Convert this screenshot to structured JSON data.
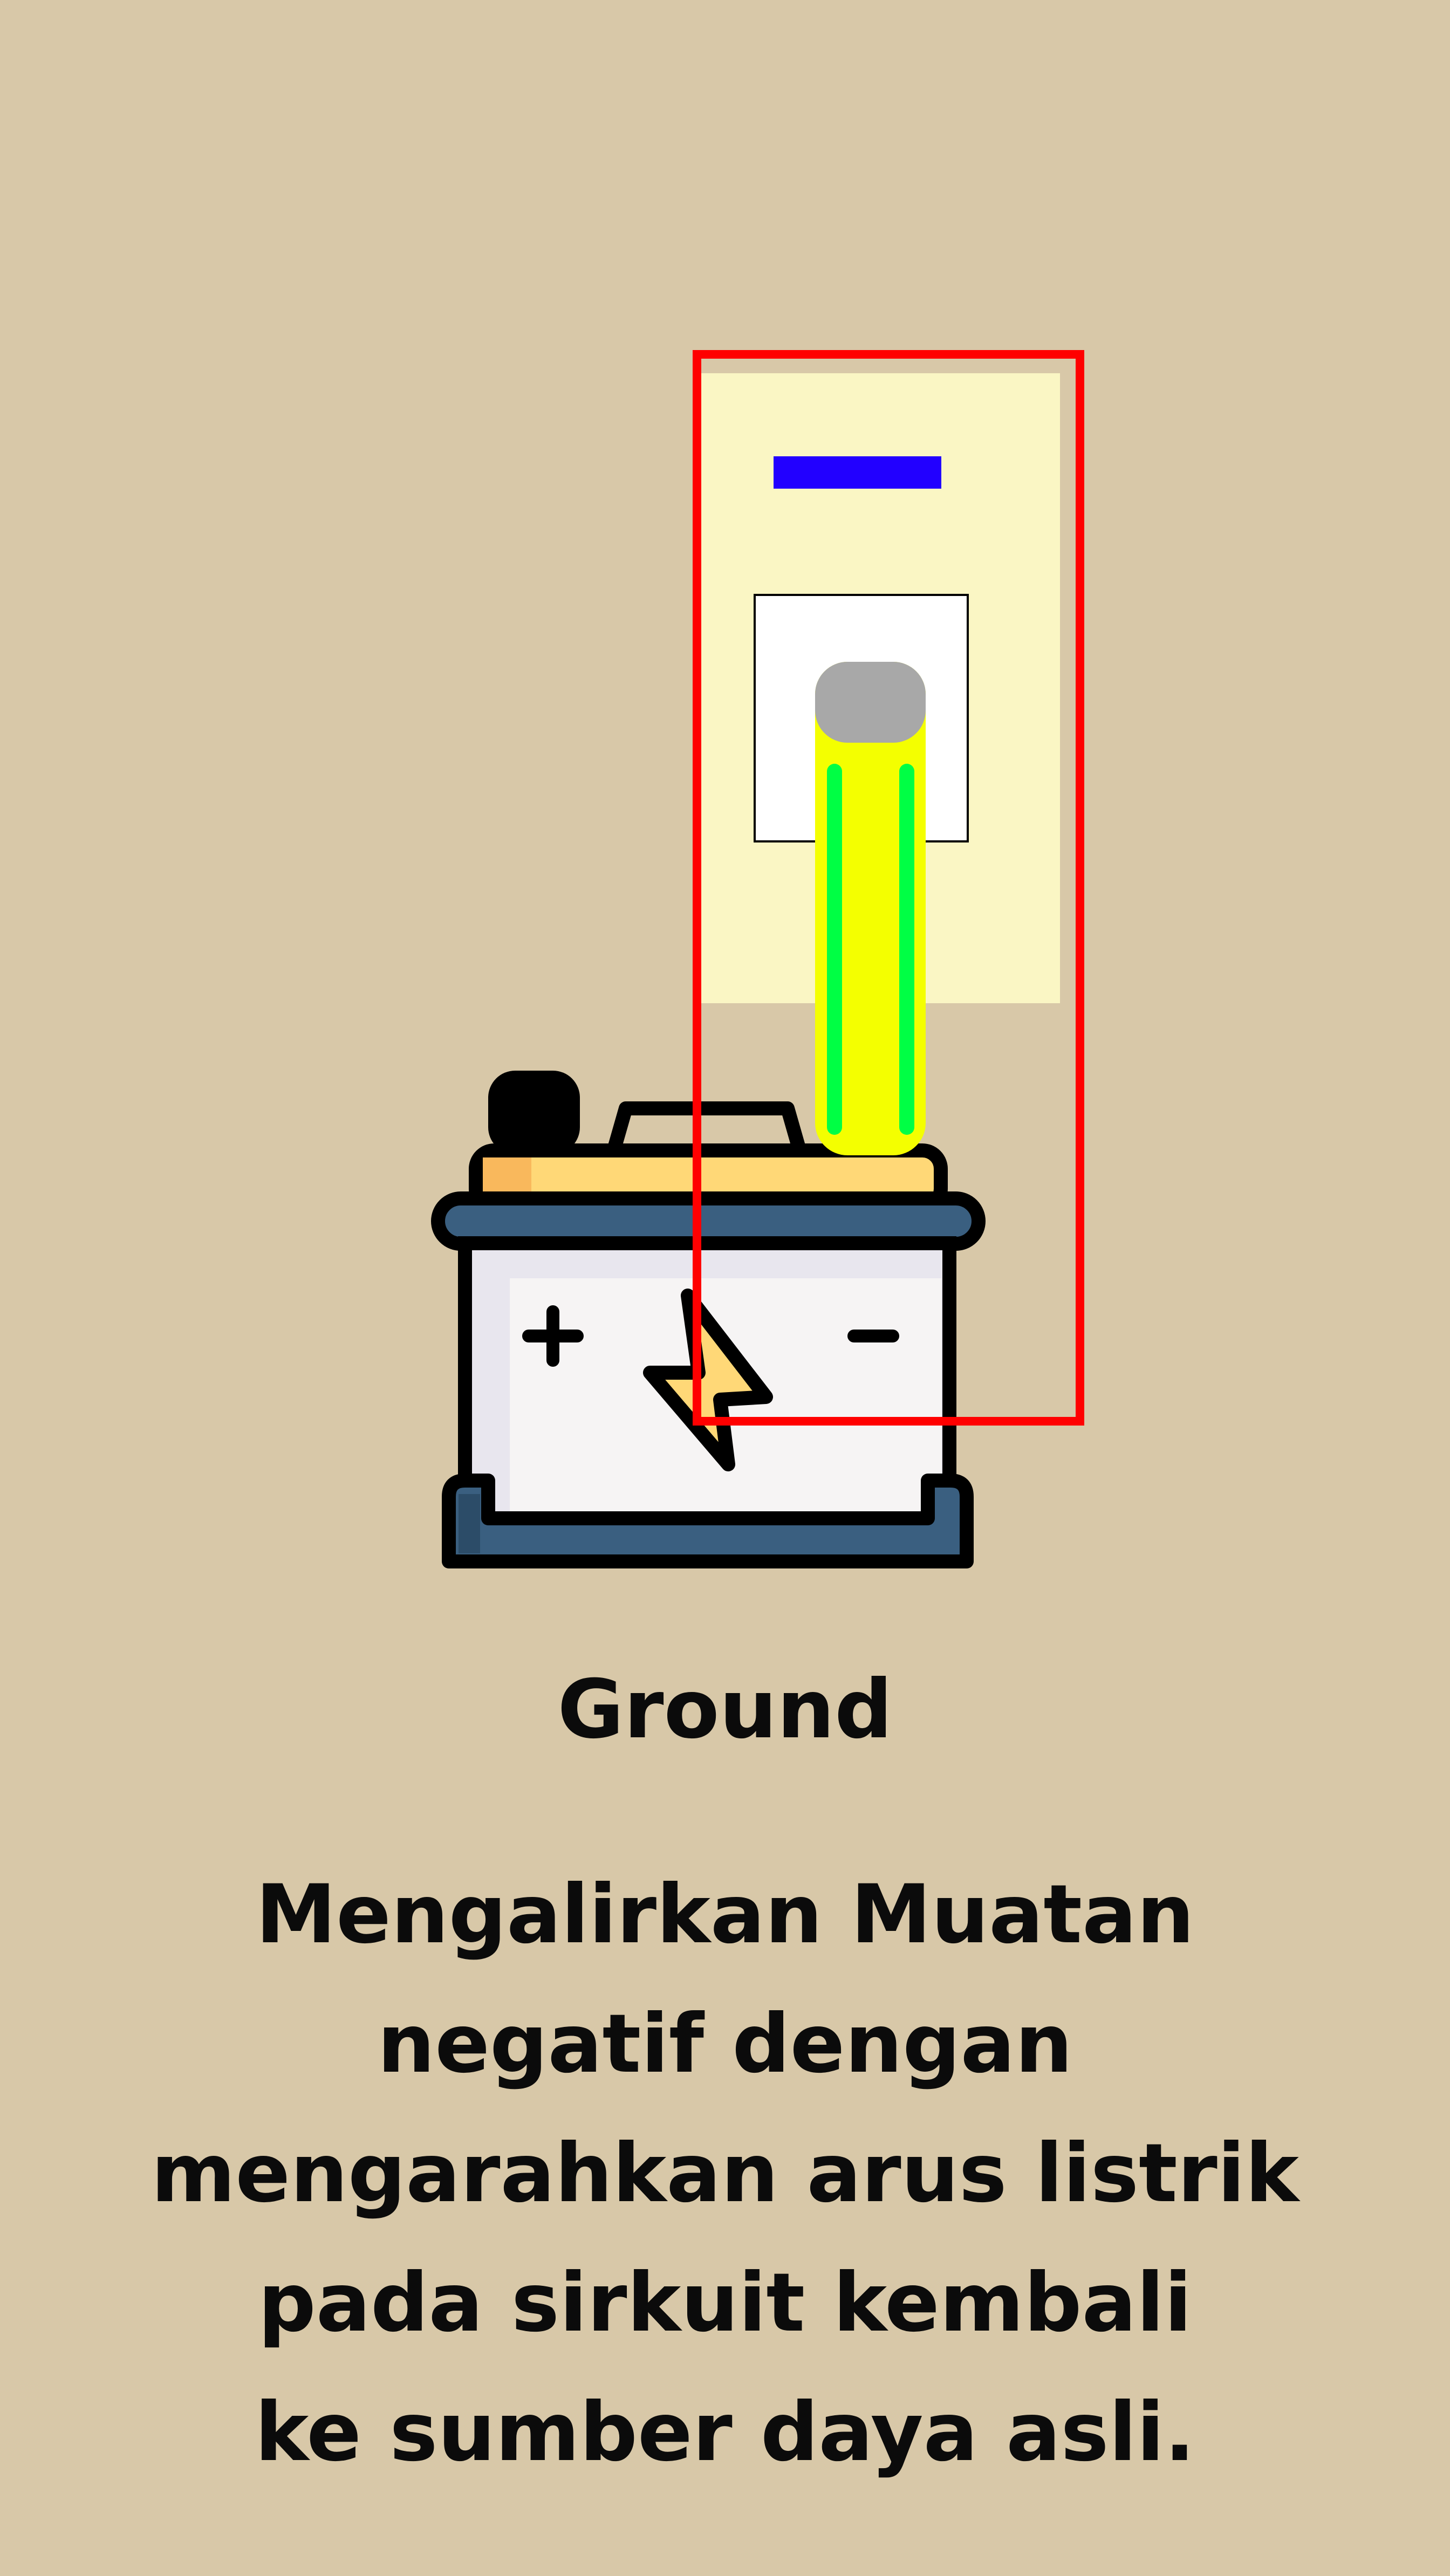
{
  "title": "Ground",
  "description": [
    "Mengalirkan Muatan",
    "negatif dengan",
    "mengarahkan arus listrik",
    "pada sirkuit kembali",
    "ke sumber daya asli."
  ],
  "battery": {
    "positive_symbol": "+",
    "negative_symbol": "−"
  },
  "colors": {
    "background": "#d8c8a8",
    "highlight_box": "#ff0000",
    "negative_marker": "#2200ff",
    "probe_body": "#f4ff00",
    "probe_stripes": "#00ff44",
    "probe_tip": "#a8a8a8",
    "panel": "#faf6c4",
    "battery_casing": "#3a5f80",
    "battery_lid": "#ffd877",
    "battery_front": "#f6f4f4",
    "bolt": "#ffd877"
  },
  "icons": [
    "battery-icon",
    "lightning-bolt-icon",
    "ground-probe-icon",
    "negative-marker-icon"
  ]
}
